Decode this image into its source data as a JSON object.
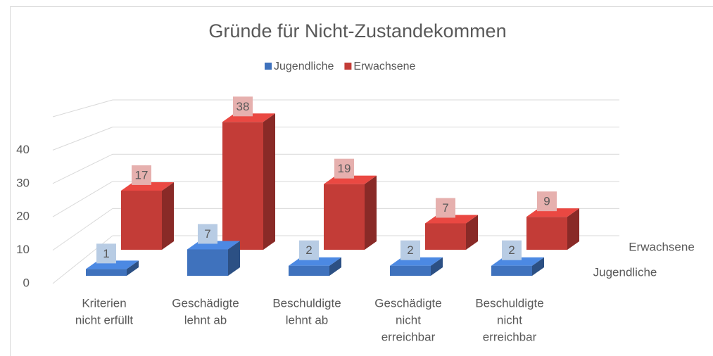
{
  "chart_data": {
    "type": "bar3d",
    "title": "Gründe für Nicht-Zustandekommen",
    "categories": [
      [
        "Kriterien",
        "nicht erfüllt"
      ],
      [
        "Geschädigte",
        "lehnt ab"
      ],
      [
        "Beschuldigte",
        "lehnt ab"
      ],
      [
        "Geschädigte",
        "nicht",
        "erreichbar"
      ],
      [
        "Beschuldigte",
        "nicht",
        "erreichbar"
      ]
    ],
    "series": [
      {
        "name": "Jugendliche",
        "color": "#3f72bd",
        "values": [
          1,
          7,
          2,
          2,
          2
        ]
      },
      {
        "name": "Erwachsene",
        "color": "#c33c37",
        "values": [
          17,
          38,
          19,
          7,
          9
        ]
      }
    ],
    "ylim": [
      0,
      50
    ],
    "yticks": [
      0,
      10,
      20,
      30,
      40
    ],
    "grid": true,
    "legend": "top"
  }
}
